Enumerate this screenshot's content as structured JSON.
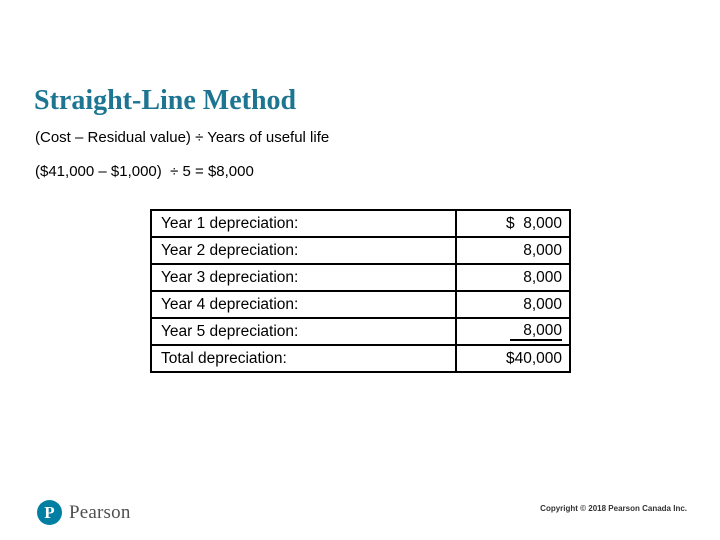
{
  "slide": {
    "title": "Straight-Line Method",
    "formula_line1": "(Cost – Residual value) ÷ Years of useful life",
    "formula_line2": "($41,000 – $1,000)  ÷ 5 = $8,000"
  },
  "table": {
    "rows": [
      {
        "label": "Year 1 depreciation:",
        "value": "$  8,000"
      },
      {
        "label": "Year 2 depreciation:",
        "value": "8,000"
      },
      {
        "label": "Year 3 depreciation:",
        "value": "8,000"
      },
      {
        "label": "Year 4 depreciation:",
        "value": "8,000"
      },
      {
        "label": "Year 5 depreciation:",
        "value": "8,000"
      },
      {
        "label": "Total depreciation:",
        "value": "$40,000"
      }
    ]
  },
  "footer": {
    "logo_mark": "P",
    "logo_text": "Pearson",
    "copyright": "Copyright © 2018 Pearson Canada Inc."
  },
  "colors": {
    "title_teal": "#1d7591",
    "pearson_teal": "#007fa3",
    "body_text": "#000000"
  }
}
